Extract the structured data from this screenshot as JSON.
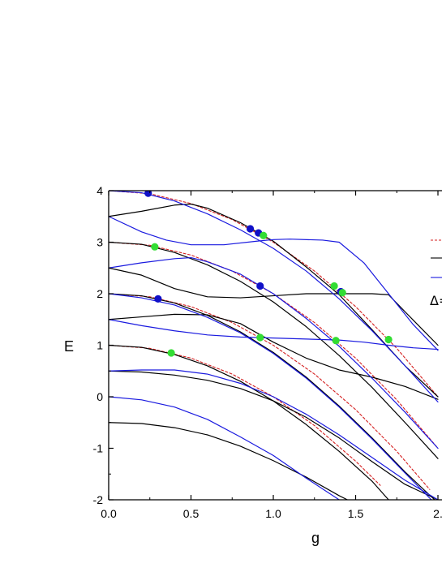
{
  "chart_data": {
    "type": "line",
    "xlabel": "g",
    "ylabel": "E",
    "xlim": [
      0.0,
      2.0
    ],
    "ylim": [
      -2,
      4
    ],
    "x_ticks": [
      "0.0",
      "0.5",
      "1.0",
      "1.5",
      "2."
    ],
    "y_ticks": [
      "-2",
      "-1",
      "0",
      "1",
      "2",
      "3",
      "4"
    ],
    "legend": {
      "placement": "right (partially cropped)",
      "entries": [
        {
          "style": "dashed",
          "color": "#d42020",
          "label": ""
        },
        {
          "style": "solid",
          "color": "#000000",
          "label": ""
        },
        {
          "style": "solid",
          "color": "#1a1adf",
          "label": ""
        }
      ],
      "text": "Δ="
    },
    "colors": {
      "red_dashed": "#d42020",
      "black": "#000000",
      "blue": "#1a1adf",
      "blue_marker": "#1010c8",
      "green_marker": "#33dd33"
    },
    "series": [
      {
        "color": "#d42020",
        "style": "dashed",
        "x": [
          0,
          0.25,
          0.5,
          0.75,
          1.0,
          1.25,
          1.5,
          1.75,
          2.0
        ],
        "y": [
          4.0,
          3.94,
          3.75,
          3.44,
          3.0,
          2.44,
          1.75,
          0.94,
          0.0
        ]
      },
      {
        "color": "#d42020",
        "style": "dashed",
        "x": [
          0,
          0.25,
          0.5,
          0.75,
          1.0,
          1.25,
          1.5,
          1.75,
          2.0
        ],
        "y": [
          3.0,
          2.94,
          2.75,
          2.44,
          2.0,
          1.44,
          0.75,
          -0.06,
          -1.0
        ]
      },
      {
        "color": "#d42020",
        "style": "dashed",
        "x": [
          0,
          0.25,
          0.5,
          0.75,
          1.0,
          1.25,
          1.5,
          1.75,
          1.95
        ],
        "y": [
          2.0,
          1.94,
          1.75,
          1.44,
          1.0,
          0.44,
          -0.25,
          -1.06,
          -1.8
        ]
      },
      {
        "color": "#d42020",
        "style": "dashed",
        "x": [
          0,
          0.25,
          0.5,
          0.75,
          1.0,
          1.25,
          1.5,
          1.65
        ],
        "y": [
          1.0,
          0.94,
          0.75,
          0.44,
          0.0,
          -0.56,
          -1.25,
          -1.72
        ]
      },
      {
        "color": "#000000",
        "style": "solid",
        "x": [
          0,
          0.2,
          0.4,
          0.5,
          0.6,
          0.8,
          1.0,
          1.2,
          1.4,
          1.6,
          1.8,
          2.0
        ],
        "y": [
          3.5,
          3.6,
          3.72,
          3.74,
          3.66,
          3.38,
          3.02,
          2.52,
          1.98,
          1.3,
          0.6,
          0.0
        ]
      },
      {
        "color": "#000000",
        "style": "solid",
        "x": [
          0,
          0.2,
          0.4,
          0.6,
          0.8,
          1.0,
          1.2,
          1.4,
          1.6,
          1.7,
          1.8,
          2.0
        ],
        "y": [
          2.5,
          2.36,
          2.1,
          1.94,
          1.92,
          1.96,
          2.0,
          2.0,
          2.0,
          1.98,
          1.65,
          1.0
        ]
      },
      {
        "color": "#000000",
        "style": "solid",
        "x": [
          0,
          0.2,
          0.4,
          0.6,
          0.8,
          1.0,
          1.2,
          1.4,
          1.6,
          1.8,
          2.0
        ],
        "y": [
          1.5,
          1.55,
          1.6,
          1.59,
          1.42,
          1.06,
          0.75,
          0.52,
          0.38,
          0.2,
          -0.05
        ]
      },
      {
        "color": "#000000",
        "style": "solid",
        "x": [
          0,
          0.2,
          0.4,
          0.6,
          0.8,
          1.0,
          1.2,
          1.4,
          1.6,
          1.8,
          2.0
        ],
        "y": [
          0.5,
          0.48,
          0.42,
          0.32,
          0.16,
          -0.08,
          -0.4,
          -0.8,
          -1.26,
          -1.7,
          -2.0
        ]
      },
      {
        "color": "#000000",
        "style": "solid",
        "x": [
          0,
          0.2,
          0.4,
          0.6,
          0.8,
          1.0,
          1.2,
          1.4,
          1.45
        ],
        "y": [
          -0.5,
          -0.52,
          -0.6,
          -0.74,
          -0.96,
          -1.24,
          -1.56,
          -1.92,
          -2.0
        ]
      },
      {
        "color": "#000000",
        "style": "solid",
        "x": [
          0,
          0.2,
          0.4,
          0.6,
          0.8,
          1.0,
          1.2,
          1.4,
          1.6,
          1.8,
          2.0
        ],
        "y": [
          3.0,
          2.96,
          2.8,
          2.56,
          2.24,
          1.84,
          1.36,
          0.8,
          0.18,
          -0.5,
          -1.2
        ]
      },
      {
        "color": "#000000",
        "style": "solid",
        "x": [
          0,
          0.2,
          0.4,
          0.6,
          0.8,
          1.0,
          1.2,
          1.4,
          1.6,
          1.8,
          1.98
        ],
        "y": [
          2.0,
          1.96,
          1.82,
          1.58,
          1.26,
          0.86,
          0.38,
          -0.18,
          -0.8,
          -1.46,
          -2.0
        ]
      },
      {
        "color": "#000000",
        "style": "solid",
        "x": [
          0,
          0.2,
          0.4,
          0.6,
          0.8,
          1.0,
          1.2,
          1.4,
          1.6,
          1.7
        ],
        "y": [
          1.0,
          0.96,
          0.82,
          0.6,
          0.3,
          -0.08,
          -0.54,
          -1.06,
          -1.64,
          -2.0
        ]
      },
      {
        "color": "#1a1adf",
        "style": "solid",
        "x": [
          0,
          0.2,
          0.35,
          0.5,
          0.7,
          0.9,
          1.0,
          1.1,
          1.3,
          1.4,
          1.55,
          1.7,
          1.85,
          2.0
        ],
        "y": [
          3.5,
          3.2,
          3.04,
          2.95,
          2.95,
          3.02,
          3.05,
          3.06,
          3.04,
          3.0,
          2.6,
          2.0,
          1.4,
          0.9
        ]
      },
      {
        "color": "#1a1adf",
        "style": "solid",
        "x": [
          0,
          0.2,
          0.4,
          0.5,
          0.6,
          0.8,
          1.0,
          1.2,
          1.4,
          1.6,
          1.8,
          2.0
        ],
        "y": [
          2.5,
          2.6,
          2.68,
          2.7,
          2.62,
          2.38,
          2.0,
          1.52,
          0.98,
          0.36,
          -0.3,
          -1.0
        ]
      },
      {
        "color": "#1a1adf",
        "style": "solid",
        "x": [
          0,
          0.2,
          0.4,
          0.6,
          0.8,
          1.0,
          1.2,
          1.4,
          1.55,
          1.7,
          1.85,
          2.0
        ],
        "y": [
          1.5,
          1.38,
          1.28,
          1.2,
          1.16,
          1.14,
          1.12,
          1.1,
          1.06,
          1.0,
          0.95,
          0.92
        ]
      },
      {
        "color": "#1a1adf",
        "style": "solid",
        "x": [
          0,
          0.2,
          0.4,
          0.6,
          0.8,
          1.0,
          1.2,
          1.4,
          1.6,
          1.8,
          2.0
        ],
        "y": [
          0.5,
          0.52,
          0.52,
          0.44,
          0.26,
          0.0,
          -0.34,
          -0.74,
          -1.18,
          -1.62,
          -2.0
        ]
      },
      {
        "color": "#1a1adf",
        "style": "solid",
        "x": [
          0,
          0.2,
          0.4,
          0.6,
          0.8,
          1.0,
          1.2,
          1.4
        ],
        "y": [
          0.0,
          -0.06,
          -0.2,
          -0.44,
          -0.78,
          -1.14,
          -1.58,
          -2.0
        ]
      },
      {
        "color": "#1a1adf",
        "style": "solid",
        "x": [
          0,
          0.2,
          0.4,
          0.6,
          0.8,
          1.0,
          1.2,
          1.4,
          1.6,
          1.8,
          1.96
        ],
        "y": [
          2.0,
          1.92,
          1.78,
          1.54,
          1.24,
          0.84,
          0.36,
          -0.2,
          -0.82,
          -1.48,
          -2.0
        ]
      },
      {
        "color": "#1a1adf",
        "style": "solid",
        "x": [
          0,
          0.2,
          0.4,
          0.6,
          0.8,
          1.0,
          1.2,
          1.4,
          1.6,
          1.8,
          2.0
        ],
        "y": [
          4.0,
          3.96,
          3.8,
          3.55,
          3.24,
          2.88,
          2.44,
          1.9,
          1.28,
          0.6,
          -0.1
        ]
      }
    ],
    "markers": [
      {
        "color": "#1010c8",
        "x": 0.24,
        "y": 3.95
      },
      {
        "color": "#1010c8",
        "x": 0.86,
        "y": 3.26
      },
      {
        "color": "#1010c8",
        "x": 0.91,
        "y": 3.18
      },
      {
        "color": "#1010c8",
        "x": 0.92,
        "y": 2.15
      },
      {
        "color": "#1010c8",
        "x": 0.3,
        "y": 1.9
      },
      {
        "color": "#1010c8",
        "x": 1.41,
        "y": 2.04
      },
      {
        "color": "#33dd33",
        "x": 0.94,
        "y": 3.13
      },
      {
        "color": "#33dd33",
        "x": 0.28,
        "y": 2.91
      },
      {
        "color": "#33dd33",
        "x": 1.37,
        "y": 2.15
      },
      {
        "color": "#33dd33",
        "x": 1.42,
        "y": 2.02
      },
      {
        "color": "#33dd33",
        "x": 0.92,
        "y": 1.15
      },
      {
        "color": "#33dd33",
        "x": 1.38,
        "y": 1.09
      },
      {
        "color": "#33dd33",
        "x": 1.7,
        "y": 1.11
      },
      {
        "color": "#33dd33",
        "x": 0.38,
        "y": 0.85
      }
    ]
  }
}
